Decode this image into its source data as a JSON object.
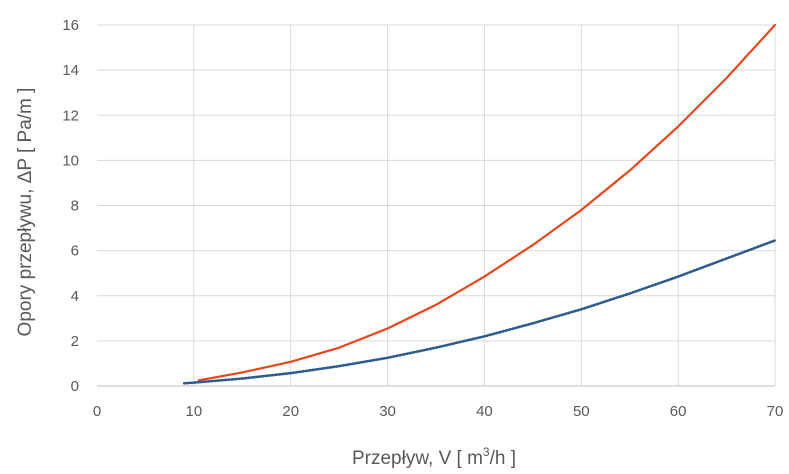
{
  "chart_data": {
    "type": "line",
    "title": "",
    "xlabel_parts": {
      "prefix": "Przepływ, V [ m",
      "sup": "3",
      "suffix": "/h ]"
    },
    "ylabel": "Opory przepływu, ΔP  [ Pa/m ]",
    "xlim": [
      0,
      70
    ],
    "ylim": [
      0,
      16
    ],
    "xticks": [
      0,
      10,
      20,
      30,
      40,
      50,
      60,
      70
    ],
    "yticks": [
      0,
      2,
      4,
      6,
      8,
      10,
      12,
      14,
      16
    ],
    "grid": true,
    "legend": "none",
    "series": [
      {
        "color": "#e8471c",
        "style": "solid",
        "points": [
          [
            10.5,
            0.25
          ],
          [
            15,
            0.6
          ],
          [
            20,
            1.07
          ],
          [
            25,
            1.7
          ],
          [
            30,
            2.55
          ],
          [
            35,
            3.6
          ],
          [
            40,
            4.85
          ],
          [
            45,
            6.25
          ],
          [
            50,
            7.8
          ],
          [
            55,
            9.55
          ],
          [
            60,
            11.5
          ],
          [
            65,
            13.65
          ],
          [
            70,
            16.0
          ]
        ]
      },
      {
        "color": "#2e5a8c",
        "style": "dotted",
        "points": [
          [
            9,
            0.12
          ],
          [
            10,
            0.15
          ],
          [
            15,
            0.33
          ],
          [
            20,
            0.57
          ],
          [
            25,
            0.88
          ],
          [
            30,
            1.25
          ],
          [
            35,
            1.7
          ],
          [
            40,
            2.2
          ],
          [
            45,
            2.78
          ],
          [
            50,
            3.4
          ],
          [
            55,
            4.1
          ],
          [
            60,
            4.85
          ],
          [
            65,
            5.65
          ],
          [
            70,
            6.45
          ]
        ]
      }
    ]
  }
}
